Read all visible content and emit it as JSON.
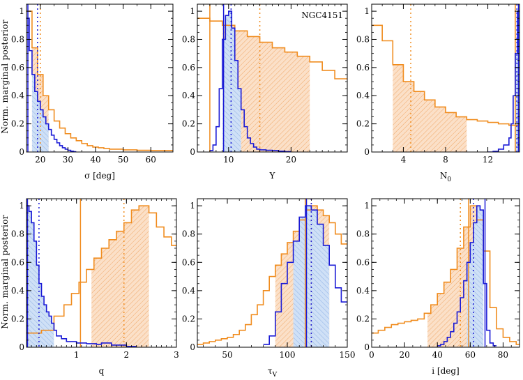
{
  "figure": {
    "ylabel": "Norm. marginal posterior",
    "colors": {
      "orange": "#f08c1e",
      "blue": "#1a1ad6",
      "orange_fill": "#f6c49a",
      "blue_fill": "#a9c4ec"
    }
  },
  "chart_data": [
    {
      "type": "histogram",
      "name": "sigma",
      "xlabel": "σ [deg]",
      "xlim": [
        15,
        68
      ],
      "ylim": [
        0,
        1.05
      ],
      "xticks": [
        20,
        30,
        40,
        50,
        60
      ],
      "yticks": [
        0,
        0.2,
        0.4,
        0.6,
        0.8,
        1
      ],
      "orange": {
        "edges": [
          15,
          17,
          19,
          21,
          23,
          25,
          27,
          29,
          31,
          33,
          35,
          37,
          39,
          41,
          43,
          45,
          50,
          55,
          60,
          68
        ],
        "values": [
          1.0,
          0.74,
          0.55,
          0.4,
          0.3,
          0.22,
          0.17,
          0.13,
          0.1,
          0.08,
          0.06,
          0.045,
          0.035,
          0.03,
          0.025,
          0.02,
          0.015,
          0.012,
          0.01
        ],
        "shade": [
          17,
          23
        ],
        "median": 20,
        "best": null
      },
      "blue": {
        "edges": [
          15,
          16,
          17,
          18,
          19,
          20,
          21,
          22,
          23,
          24,
          25,
          26,
          27,
          28,
          29,
          30,
          31,
          32,
          33
        ],
        "values": [
          0.95,
          0.72,
          0.55,
          0.43,
          0.36,
          0.3,
          0.25,
          0.2,
          0.16,
          0.12,
          0.09,
          0.065,
          0.045,
          0.03,
          0.02,
          0.012,
          0.006,
          0.002
        ],
        "shade": [
          17,
          23
        ],
        "median": 19,
        "best": 15.5
      }
    },
    {
      "type": "histogram",
      "name": "Y",
      "xlabel": "Y",
      "xlim": [
        5,
        29
      ],
      "ylim": [
        0,
        1.05
      ],
      "xticks": [
        10,
        20
      ],
      "yticks": [
        0,
        0.2,
        0.4,
        0.6,
        0.8,
        1
      ],
      "annotation": "NGC4151",
      "orange": {
        "edges": [
          5,
          7,
          9,
          11,
          13,
          15,
          17,
          19,
          21,
          23,
          25,
          27,
          29
        ],
        "values": [
          0.95,
          0.93,
          0.9,
          0.86,
          0.82,
          0.78,
          0.74,
          0.71,
          0.68,
          0.64,
          0.58,
          0.52
        ],
        "shade": [
          9,
          23
        ],
        "median": 15,
        "best": 7
      },
      "blue": {
        "edges": [
          7.0,
          7.5,
          8.0,
          8.5,
          9.0,
          9.5,
          10.0,
          10.5,
          11.0,
          11.5,
          12.0,
          12.5,
          13.0,
          13.5,
          14.0,
          14.5,
          15.0,
          16.0,
          17.0,
          18.0,
          19.0,
          20.0
        ],
        "values": [
          0.01,
          0.05,
          0.18,
          0.45,
          0.8,
          0.97,
          1.0,
          0.88,
          0.65,
          0.45,
          0.3,
          0.18,
          0.1,
          0.06,
          0.035,
          0.02,
          0.015,
          0.012,
          0.01,
          0.006,
          0.003
        ],
        "shade": [
          9,
          12
        ],
        "median": 10.4,
        "best": 9.2
      }
    },
    {
      "type": "histogram",
      "name": "N0",
      "xlabel": "N0",
      "xlim": [
        1,
        15
      ],
      "ylim": [
        0,
        1.05
      ],
      "xticks": [
        4,
        8,
        12
      ],
      "yticks": [
        0,
        0.2,
        0.4,
        0.6,
        0.8,
        1
      ],
      "orange": {
        "edges": [
          1,
          2,
          3,
          4,
          5,
          6,
          7,
          8,
          9,
          10,
          11,
          12,
          13,
          14,
          15
        ],
        "values": [
          0.9,
          0.79,
          0.62,
          0.5,
          0.43,
          0.37,
          0.32,
          0.28,
          0.25,
          0.23,
          0.22,
          0.21,
          0.2,
          0.19
        ],
        "shade": [
          3,
          10
        ],
        "median": 4.7,
        "best": 14.6
      },
      "blue": {
        "edges": [
          12.0,
          12.5,
          13.0,
          13.5,
          14.0,
          14.2,
          14.4,
          14.6,
          14.8,
          15.0
        ],
        "values": [
          0.0,
          0.005,
          0.02,
          0.05,
          0.1,
          0.2,
          0.4,
          0.7,
          1.0
        ],
        "shade": [
          14.6,
          15
        ],
        "median": 14.75,
        "best": 14.9
      }
    },
    {
      "type": "histogram",
      "name": "q",
      "xlabel": "q",
      "xlim": [
        0,
        3
      ],
      "ylim": [
        0,
        1.05
      ],
      "xticks": [
        1,
        2,
        3
      ],
      "yticks": [
        0,
        0.2,
        0.4,
        0.6,
        0.8,
        1
      ],
      "orange": {
        "edges": [
          0.0,
          0.3,
          0.55,
          0.75,
          0.9,
          1.05,
          1.2,
          1.35,
          1.5,
          1.65,
          1.8,
          1.95,
          2.1,
          2.25,
          2.45,
          2.6,
          2.75,
          2.9,
          3.0
        ],
        "values": [
          0.1,
          0.12,
          0.22,
          0.3,
          0.38,
          0.46,
          0.55,
          0.63,
          0.7,
          0.76,
          0.82,
          0.88,
          0.97,
          1.0,
          0.95,
          0.85,
          0.78,
          0.72
        ],
        "shade": [
          1.3,
          2.45
        ],
        "median": 1.95,
        "best": 1.08
      },
      "blue": {
        "edges": [
          0.0,
          0.05,
          0.1,
          0.15,
          0.2,
          0.25,
          0.3,
          0.35,
          0.4,
          0.45,
          0.5,
          0.55,
          0.6,
          0.7,
          0.8,
          1.0,
          1.2,
          1.4,
          1.5,
          1.7,
          2.0,
          2.2
        ],
        "values": [
          1.0,
          0.96,
          0.88,
          0.75,
          0.58,
          0.45,
          0.36,
          0.3,
          0.25,
          0.22,
          0.17,
          0.12,
          0.08,
          0.06,
          0.04,
          0.03,
          0.025,
          0.02,
          0.03,
          0.015,
          0.005
        ],
        "shade": [
          0,
          0.55
        ],
        "median": 0.25,
        "best": 0.02
      }
    },
    {
      "type": "histogram",
      "name": "tauV",
      "xlabel": "τV",
      "xlim": [
        25,
        150
      ],
      "ylim": [
        0,
        1.05
      ],
      "xticks": [
        50,
        100,
        150
      ],
      "yticks": [
        0,
        0.2,
        0.4,
        0.6,
        0.8,
        1
      ],
      "orange": {
        "edges": [
          25,
          30,
          35,
          40,
          45,
          50,
          55,
          60,
          65,
          70,
          75,
          80,
          85,
          90,
          95,
          100,
          105,
          110,
          115,
          120,
          125,
          130,
          135,
          140,
          145,
          150
        ],
        "values": [
          0.02,
          0.03,
          0.04,
          0.05,
          0.06,
          0.07,
          0.09,
          0.12,
          0.16,
          0.23,
          0.3,
          0.4,
          0.5,
          0.58,
          0.66,
          0.74,
          0.82,
          0.9,
          0.97,
          1.0,
          0.97,
          0.93,
          0.88,
          0.8,
          0.73
        ],
        "shade": [
          90,
          135
        ],
        "median": 120,
        "best": 115
      },
      "blue": {
        "edges": [
          80,
          85,
          90,
          95,
          100,
          105,
          110,
          115,
          120,
          125,
          130,
          135,
          140,
          145,
          150
        ],
        "values": [
          0.02,
          0.08,
          0.25,
          0.45,
          0.6,
          0.75,
          0.92,
          1.0,
          0.97,
          0.87,
          0.72,
          0.58,
          0.42,
          0.32
        ],
        "shade": [
          105,
          135
        ],
        "median": 120,
        "best": 116
      }
    },
    {
      "type": "histogram",
      "name": "i",
      "xlabel": "i [deg]",
      "xlim": [
        0,
        90
      ],
      "ylim": [
        0,
        1.05
      ],
      "xticks": [
        0,
        20,
        40,
        60,
        80
      ],
      "yticks": [
        0,
        0.2,
        0.4,
        0.6,
        0.8,
        1
      ],
      "orange": {
        "edges": [
          0,
          4,
          8,
          12,
          16,
          20,
          24,
          28,
          32,
          36,
          40,
          44,
          48,
          52,
          56,
          60,
          64,
          68,
          72,
          76,
          80,
          84,
          88,
          90
        ],
        "values": [
          0.1,
          0.12,
          0.14,
          0.16,
          0.17,
          0.18,
          0.19,
          0.2,
          0.24,
          0.3,
          0.38,
          0.46,
          0.55,
          0.7,
          0.85,
          1.0,
          0.9,
          0.68,
          0.28,
          0.13,
          0.07,
          0.04,
          0.02
        ],
        "shade": [
          34,
          66
        ],
        "median": 54,
        "best": 59
      },
      "blue": {
        "edges": [
          40,
          42,
          44,
          46,
          48,
          50,
          52,
          54,
          56,
          58,
          60,
          62,
          64,
          66,
          68,
          70,
          72,
          74,
          76
        ],
        "values": [
          0.01,
          0.02,
          0.04,
          0.07,
          0.11,
          0.17,
          0.25,
          0.35,
          0.47,
          0.6,
          0.74,
          0.88,
          1.0,
          0.97,
          0.45,
          0.12,
          0.03,
          0.01
        ],
        "shade": [
          58,
          68
        ],
        "median": 62,
        "best": 69
      }
    }
  ]
}
